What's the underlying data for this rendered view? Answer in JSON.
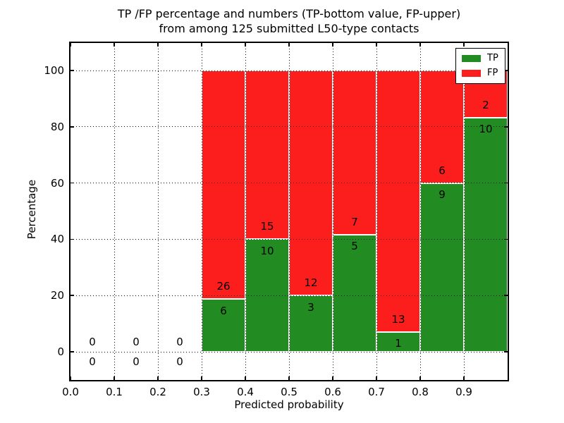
{
  "chart_data": {
    "type": "bar",
    "stacked": true,
    "title_line1": "TP /FP percentage and numbers (TP-bottom value, FP-upper)",
    "title_line2": "from among 125 submitted L50-type contacts",
    "xlabel": "Predicted probability",
    "ylabel": "Percentage",
    "xlim": [
      0.0,
      1.0
    ],
    "ylim": [
      -10,
      109.8
    ],
    "x_tick_values": [
      0.0,
      0.1,
      0.2,
      0.3,
      0.4,
      0.5,
      0.6,
      0.7,
      0.8,
      0.9
    ],
    "x_tick_labels": [
      "0.0",
      "0.1",
      "0.2",
      "0.3",
      "0.4",
      "0.5",
      "0.6",
      "0.7",
      "0.8",
      "0.9"
    ],
    "y_tick_values": [
      0,
      20,
      40,
      60,
      80,
      100
    ],
    "y_tick_labels": [
      "0",
      "20",
      "40",
      "60",
      "80",
      "100"
    ],
    "grid": true,
    "grid_style": "dotted",
    "total_contacts": 125,
    "colors": {
      "tp": "#228c22",
      "fp": "#fc1d1d"
    },
    "legend": {
      "position": "upper right",
      "entries": [
        {
          "label": "TP",
          "color": "#228c22"
        },
        {
          "label": "FP",
          "color": "#fc1d1d"
        }
      ]
    },
    "bars": [
      {
        "bin": "0.0-0.1",
        "x_start": 0.0,
        "x_end": 0.1,
        "tp_count": 0,
        "fp_count": 0,
        "tp_pct": 0,
        "fp_pct": 0
      },
      {
        "bin": "0.1-0.2",
        "x_start": 0.1,
        "x_end": 0.2,
        "tp_count": 0,
        "fp_count": 0,
        "tp_pct": 0,
        "fp_pct": 0
      },
      {
        "bin": "0.2-0.3",
        "x_start": 0.2,
        "x_end": 0.3,
        "tp_count": 0,
        "fp_count": 0,
        "tp_pct": 0,
        "fp_pct": 0
      },
      {
        "bin": "0.3-0.4",
        "x_start": 0.3,
        "x_end": 0.4,
        "tp_count": 6,
        "fp_count": 26,
        "tp_pct": 18.75,
        "fp_pct": 81.25
      },
      {
        "bin": "0.4-0.5",
        "x_start": 0.4,
        "x_end": 0.5,
        "tp_count": 10,
        "fp_count": 15,
        "tp_pct": 40.0,
        "fp_pct": 60.0
      },
      {
        "bin": "0.5-0.6",
        "x_start": 0.5,
        "x_end": 0.6,
        "tp_count": 3,
        "fp_count": 12,
        "tp_pct": 20.0,
        "fp_pct": 80.0
      },
      {
        "bin": "0.6-0.7",
        "x_start": 0.6,
        "x_end": 0.7,
        "tp_count": 5,
        "fp_count": 7,
        "tp_pct": 41.67,
        "fp_pct": 58.33
      },
      {
        "bin": "0.7-0.8",
        "x_start": 0.7,
        "x_end": 0.8,
        "tp_count": 1,
        "fp_count": 13,
        "tp_pct": 7.14,
        "fp_pct": 92.86
      },
      {
        "bin": "0.8-0.9",
        "x_start": 0.8,
        "x_end": 0.9,
        "tp_count": 9,
        "fp_count": 6,
        "tp_pct": 60.0,
        "fp_pct": 40.0
      },
      {
        "bin": "0.9-1.0",
        "x_start": 0.9,
        "x_end": 1.0,
        "tp_count": 10,
        "fp_count": 2,
        "tp_pct": 83.33,
        "fp_pct": 16.67
      }
    ]
  }
}
